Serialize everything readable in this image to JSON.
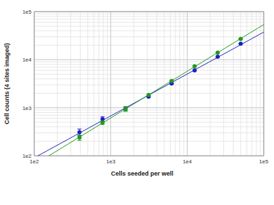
{
  "chart_data": {
    "type": "scatter",
    "x_label": "Cells seeded per well",
    "y_label": "Cell counts (4 sites imaged)",
    "log": true,
    "grid": true,
    "x": [
      390,
      781,
      1562,
      3125,
      6250,
      12500,
      25000,
      50000
    ],
    "xlim": [
      100,
      100000
    ],
    "ylim": [
      100,
      100000
    ],
    "xticks": [
      {
        "value": 100,
        "label": "1e2"
      },
      {
        "value": 1000,
        "label": "1e3"
      },
      {
        "value": 10000,
        "label": "1e4"
      },
      {
        "value": 100000,
        "label": "1e5"
      }
    ],
    "yticks": [
      {
        "value": 100,
        "label": "1e2"
      },
      {
        "value": 1000,
        "label": "1e3"
      },
      {
        "value": 10000,
        "label": "1e4"
      },
      {
        "value": 100000,
        "label": "1e5"
      }
    ],
    "series": [
      {
        "color": "#2020c0",
        "marker": "circle",
        "line_style": "solid",
        "values": [
          310,
          580,
          950,
          1700,
          3200,
          6000,
          11500,
          21500
        ],
        "errors": [
          50,
          70,
          80,
          60,
          120,
          200,
          300,
          400
        ]
      },
      {
        "color": "#1f9a1f",
        "marker": "circle",
        "line_style": "solid",
        "values": [
          240,
          490,
          950,
          1850,
          3600,
          7300,
          14000,
          27000
        ],
        "errors": [
          30,
          40,
          110,
          60,
          120,
          200,
          300,
          400
        ]
      }
    ]
  }
}
